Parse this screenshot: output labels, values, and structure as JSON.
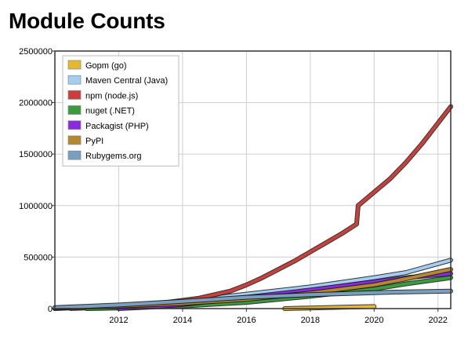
{
  "page": {
    "title": "Module Counts"
  },
  "chart_data": {
    "type": "line",
    "title": "",
    "xlabel": "",
    "ylabel": "",
    "xlim": [
      2010.0,
      2022.4
    ],
    "ylim": [
      0,
      2500000
    ],
    "x_ticks": [
      2012,
      2014,
      2016,
      2018,
      2020,
      2022
    ],
    "y_ticks": [
      0,
      500000,
      1000000,
      1500000,
      2000000,
      2500000
    ],
    "y_tick_labels": [
      "0",
      "500000",
      "1000000",
      "1500000",
      "2000000",
      "2500000"
    ],
    "grid": true,
    "legend_position": "top-left",
    "series": [
      {
        "name": "Gopm (go)",
        "color": "#e8b730",
        "points": [
          [
            2017.2,
            0
          ],
          [
            2018.0,
            6000
          ],
          [
            2019.0,
            13000
          ],
          [
            2020.0,
            20000
          ]
        ]
      },
      {
        "name": "Maven Central (Java)",
        "color": "#a4cdf0",
        "points": [
          [
            2010.0,
            0
          ],
          [
            2012.0,
            25000
          ],
          [
            2014.0,
            70000
          ],
          [
            2016.0,
            140000
          ],
          [
            2018.0,
            210000
          ],
          [
            2020.0,
            300000
          ],
          [
            2021.0,
            350000
          ],
          [
            2022.4,
            470000
          ]
        ]
      },
      {
        "name": "npm (node.js)",
        "color": "#c8403c",
        "points": [
          [
            2010.5,
            1000
          ],
          [
            2011.5,
            10000
          ],
          [
            2012.5,
            30000
          ],
          [
            2013.5,
            60000
          ],
          [
            2014.5,
            100000
          ],
          [
            2015.5,
            170000
          ],
          [
            2016.0,
            230000
          ],
          [
            2016.5,
            300000
          ],
          [
            2017.0,
            380000
          ],
          [
            2017.5,
            460000
          ],
          [
            2018.0,
            550000
          ],
          [
            2018.5,
            640000
          ],
          [
            2019.0,
            730000
          ],
          [
            2019.45,
            820000
          ],
          [
            2019.5,
            1000000
          ],
          [
            2020.0,
            1130000
          ],
          [
            2020.5,
            1260000
          ],
          [
            2021.0,
            1420000
          ],
          [
            2021.5,
            1600000
          ],
          [
            2022.0,
            1800000
          ],
          [
            2022.4,
            1960000
          ]
        ]
      },
      {
        "name": "nuget (.NET)",
        "color": "#3b9a3e",
        "points": [
          [
            2011.0,
            0
          ],
          [
            2012.0,
            5000
          ],
          [
            2014.0,
            25000
          ],
          [
            2016.0,
            60000
          ],
          [
            2018.0,
            120000
          ],
          [
            2020.0,
            190000
          ],
          [
            2021.0,
            240000
          ],
          [
            2022.4,
            300000
          ]
        ]
      },
      {
        "name": "Packagist (PHP)",
        "color": "#8a2be2",
        "points": [
          [
            2012.0,
            0
          ],
          [
            2013.0,
            15000
          ],
          [
            2014.0,
            40000
          ],
          [
            2016.0,
            110000
          ],
          [
            2018.0,
            180000
          ],
          [
            2020.0,
            260000
          ],
          [
            2021.0,
            300000
          ],
          [
            2022.4,
            340000
          ]
        ]
      },
      {
        "name": "PyPI",
        "color": "#b5892b",
        "points": [
          [
            2010.0,
            5000
          ],
          [
            2012.0,
            25000
          ],
          [
            2014.0,
            50000
          ],
          [
            2016.0,
            90000
          ],
          [
            2018.0,
            150000
          ],
          [
            2020.0,
            230000
          ],
          [
            2021.0,
            290000
          ],
          [
            2022.4,
            380000
          ]
        ]
      },
      {
        "name": "Rubygems.org",
        "color": "#7a9ec0",
        "points": [
          [
            2010.0,
            10000
          ],
          [
            2012.0,
            35000
          ],
          [
            2014.0,
            70000
          ],
          [
            2016.0,
            110000
          ],
          [
            2018.0,
            135000
          ],
          [
            2020.0,
            155000
          ],
          [
            2021.0,
            162000
          ],
          [
            2022.4,
            170000
          ]
        ]
      }
    ]
  }
}
